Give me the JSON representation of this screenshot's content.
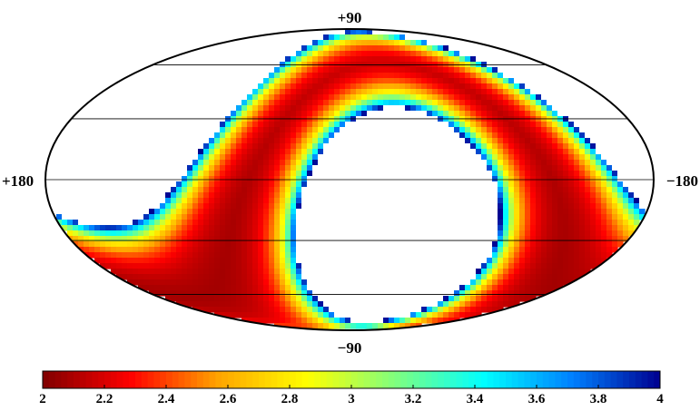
{
  "chart_data": {
    "type": "heatmap",
    "projection": "mollweide (all-sky)",
    "title": "",
    "labels": {
      "top": "+90",
      "bottom": "−90",
      "left": "+180",
      "right": "−180"
    },
    "graticule": {
      "longitude_step_deg": 30,
      "latitude_step_deg": 30,
      "color": "#000000"
    },
    "value_field": {
      "background_value": 2.05,
      "masked_value_color": "#ffffff",
      "masked_regions": [
        {
          "name": "upper-left",
          "center_lon_deg": 150,
          "center_lat_deg": 35
        },
        {
          "name": "lower-right",
          "center_lon_deg": -30,
          "center_lat_deg": -22
        }
      ],
      "mask_threshold": 4.0
    },
    "colorbar": {
      "min": 2,
      "max": 4,
      "ticks": [
        "2",
        "2.2",
        "2.4",
        "2.6",
        "2.8",
        "3",
        "3.2",
        "3.4",
        "3.6",
        "3.8",
        "4"
      ],
      "colormap": [
        "#800000",
        "#ff0000",
        "#ffa500",
        "#ffff00",
        "#7fff7f",
        "#00ffff",
        "#0080ff",
        "#00008f"
      ]
    }
  }
}
